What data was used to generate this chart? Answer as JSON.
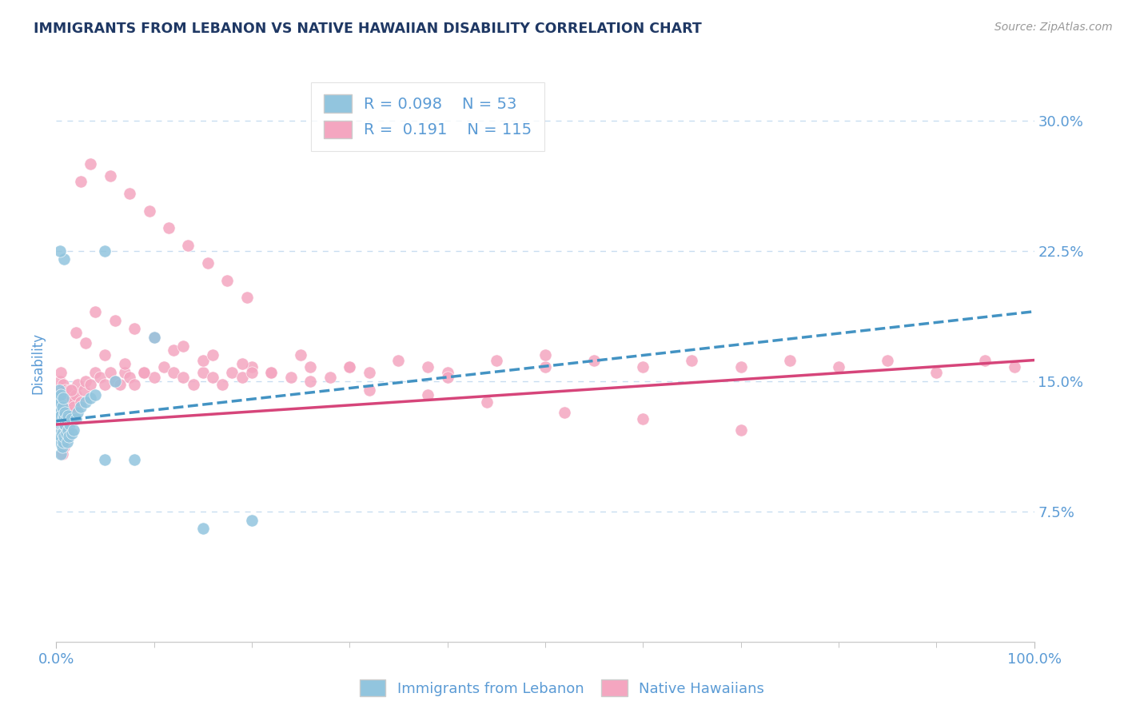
{
  "title": "IMMIGRANTS FROM LEBANON VS NATIVE HAWAIIAN DISABILITY CORRELATION CHART",
  "source_text": "Source: ZipAtlas.com",
  "ylabel": "Disability",
  "xlim": [
    0.0,
    1.0
  ],
  "ylim": [
    0.0,
    0.32
  ],
  "yticks": [
    0.0,
    0.075,
    0.15,
    0.225,
    0.3
  ],
  "ytick_labels": [
    "",
    "7.5%",
    "15.0%",
    "22.5%",
    "30.0%"
  ],
  "xtick_labels": [
    "0.0%",
    "100.0%"
  ],
  "legend_R1": "0.098",
  "legend_N1": "53",
  "legend_R2": "0.191",
  "legend_N2": "115",
  "blue_color": "#92c5de",
  "pink_color": "#f4a6c0",
  "blue_line_color": "#4393c3",
  "pink_line_color": "#d6457a",
  "axis_color": "#5b9bd5",
  "title_color": "#1f3864",
  "background_color": "#ffffff",
  "grid_color": "#c8ddf0",
  "blue_trend_x0": 0.0,
  "blue_trend_y0": 0.127,
  "blue_trend_x1": 1.0,
  "blue_trend_y1": 0.19,
  "pink_trend_x0": 0.0,
  "pink_trend_y0": 0.125,
  "pink_trend_x1": 1.0,
  "pink_trend_y1": 0.162,
  "blue_scatter_x": [
    0.002,
    0.002,
    0.002,
    0.003,
    0.003,
    0.003,
    0.003,
    0.004,
    0.004,
    0.004,
    0.004,
    0.005,
    0.005,
    0.005,
    0.005,
    0.005,
    0.006,
    0.006,
    0.006,
    0.006,
    0.007,
    0.007,
    0.007,
    0.008,
    0.008,
    0.008,
    0.009,
    0.009,
    0.01,
    0.01,
    0.011,
    0.012,
    0.012,
    0.013,
    0.014,
    0.015,
    0.016,
    0.018,
    0.02,
    0.022,
    0.025,
    0.03,
    0.035,
    0.04,
    0.05,
    0.06,
    0.08,
    0.1,
    0.15,
    0.2,
    0.05,
    0.008,
    0.004
  ],
  "blue_scatter_y": [
    0.13,
    0.118,
    0.125,
    0.135,
    0.14,
    0.145,
    0.128,
    0.12,
    0.132,
    0.138,
    0.115,
    0.125,
    0.13,
    0.142,
    0.108,
    0.118,
    0.125,
    0.135,
    0.112,
    0.12,
    0.128,
    0.14,
    0.115,
    0.125,
    0.13,
    0.118,
    0.125,
    0.132,
    0.12,
    0.128,
    0.115,
    0.122,
    0.13,
    0.118,
    0.125,
    0.128,
    0.12,
    0.122,
    0.128,
    0.132,
    0.135,
    0.138,
    0.14,
    0.142,
    0.105,
    0.15,
    0.105,
    0.175,
    0.065,
    0.07,
    0.225,
    0.22,
    0.225
  ],
  "pink_scatter_x": [
    0.002,
    0.003,
    0.003,
    0.004,
    0.004,
    0.005,
    0.005,
    0.005,
    0.006,
    0.006,
    0.007,
    0.007,
    0.008,
    0.008,
    0.009,
    0.009,
    0.01,
    0.01,
    0.011,
    0.012,
    0.013,
    0.014,
    0.015,
    0.016,
    0.017,
    0.018,
    0.02,
    0.022,
    0.025,
    0.028,
    0.03,
    0.035,
    0.04,
    0.045,
    0.05,
    0.055,
    0.06,
    0.065,
    0.07,
    0.075,
    0.08,
    0.09,
    0.1,
    0.11,
    0.12,
    0.13,
    0.14,
    0.15,
    0.16,
    0.17,
    0.18,
    0.19,
    0.2,
    0.22,
    0.24,
    0.26,
    0.28,
    0.3,
    0.32,
    0.35,
    0.38,
    0.4,
    0.45,
    0.5,
    0.55,
    0.6,
    0.65,
    0.7,
    0.75,
    0.8,
    0.85,
    0.9,
    0.95,
    0.98,
    0.012,
    0.008,
    0.006,
    0.015,
    0.02,
    0.03,
    0.05,
    0.07,
    0.09,
    0.12,
    0.15,
    0.2,
    0.25,
    0.3,
    0.4,
    0.5,
    0.025,
    0.035,
    0.055,
    0.075,
    0.095,
    0.115,
    0.135,
    0.155,
    0.175,
    0.195,
    0.04,
    0.06,
    0.08,
    0.1,
    0.13,
    0.16,
    0.19,
    0.22,
    0.26,
    0.32,
    0.38,
    0.44,
    0.52,
    0.6,
    0.7
  ],
  "pink_scatter_y": [
    0.138,
    0.145,
    0.128,
    0.135,
    0.15,
    0.122,
    0.138,
    0.155,
    0.128,
    0.142,
    0.135,
    0.148,
    0.125,
    0.14,
    0.132,
    0.145,
    0.128,
    0.142,
    0.135,
    0.128,
    0.138,
    0.145,
    0.132,
    0.14,
    0.128,
    0.135,
    0.142,
    0.148,
    0.138,
    0.145,
    0.15,
    0.148,
    0.155,
    0.152,
    0.148,
    0.155,
    0.15,
    0.148,
    0.155,
    0.152,
    0.148,
    0.155,
    0.152,
    0.158,
    0.155,
    0.152,
    0.148,
    0.155,
    0.152,
    0.148,
    0.155,
    0.152,
    0.158,
    0.155,
    0.152,
    0.158,
    0.152,
    0.158,
    0.155,
    0.162,
    0.158,
    0.155,
    0.162,
    0.158,
    0.162,
    0.158,
    0.162,
    0.158,
    0.162,
    0.158,
    0.162,
    0.155,
    0.162,
    0.158,
    0.118,
    0.112,
    0.108,
    0.145,
    0.178,
    0.172,
    0.165,
    0.16,
    0.155,
    0.168,
    0.162,
    0.155,
    0.165,
    0.158,
    0.152,
    0.165,
    0.265,
    0.275,
    0.268,
    0.258,
    0.248,
    0.238,
    0.228,
    0.218,
    0.208,
    0.198,
    0.19,
    0.185,
    0.18,
    0.175,
    0.17,
    0.165,
    0.16,
    0.155,
    0.15,
    0.145,
    0.142,
    0.138,
    0.132,
    0.128,
    0.122
  ]
}
